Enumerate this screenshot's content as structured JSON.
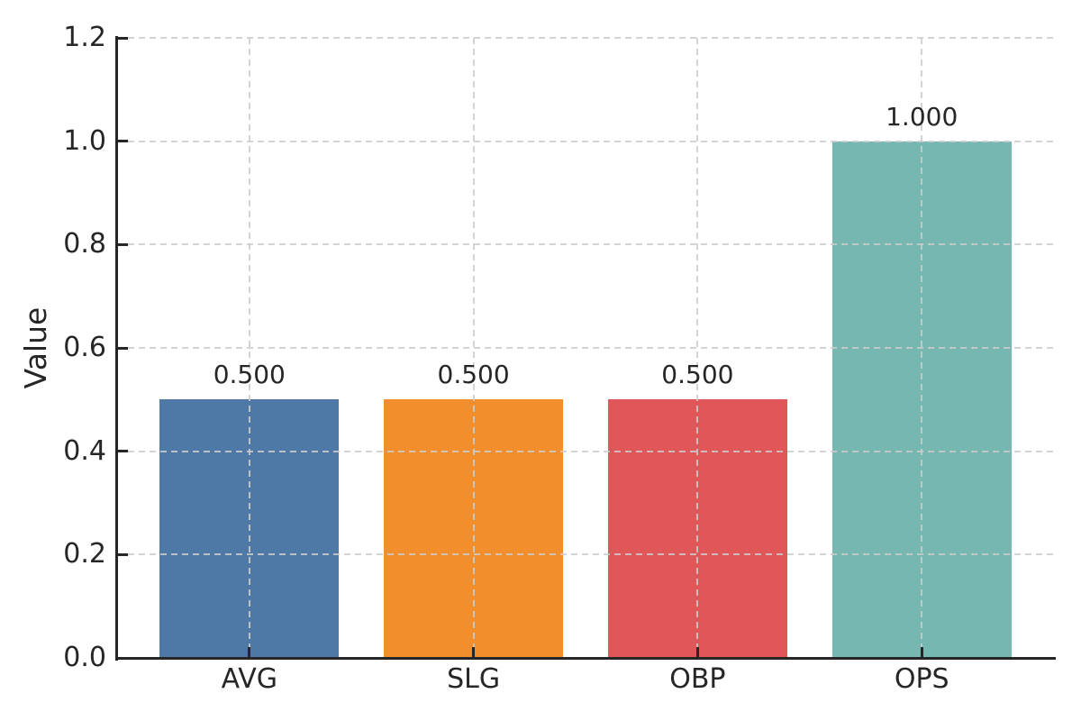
{
  "chart_data": {
    "type": "bar",
    "title": "",
    "xlabel": "",
    "ylabel": "Value",
    "categories": [
      "AVG",
      "SLG",
      "OBP",
      "OPS"
    ],
    "values": [
      0.5,
      0.5,
      0.5,
      1.0
    ],
    "bar_labels": [
      "0.500",
      "0.500",
      "0.500",
      "1.000"
    ],
    "bar_colors": [
      "#4e79a7",
      "#f28e2b",
      "#e15759",
      "#76b7b2"
    ],
    "ylim": [
      0,
      1.2
    ],
    "yticks": [
      0.0,
      0.2,
      0.4,
      0.6,
      0.8,
      1.0,
      1.2
    ],
    "ytick_labels": [
      "0.0",
      "0.2",
      "0.4",
      "0.6",
      "0.8",
      "1.0",
      "1.2"
    ],
    "grid": "dashed gray, horizontal and vertical, drawn over bars",
    "legend": "none",
    "background_color": "#ffffff",
    "text_color": "#262626",
    "grid_color": "#cccccc",
    "spine_color": "#262626"
  }
}
